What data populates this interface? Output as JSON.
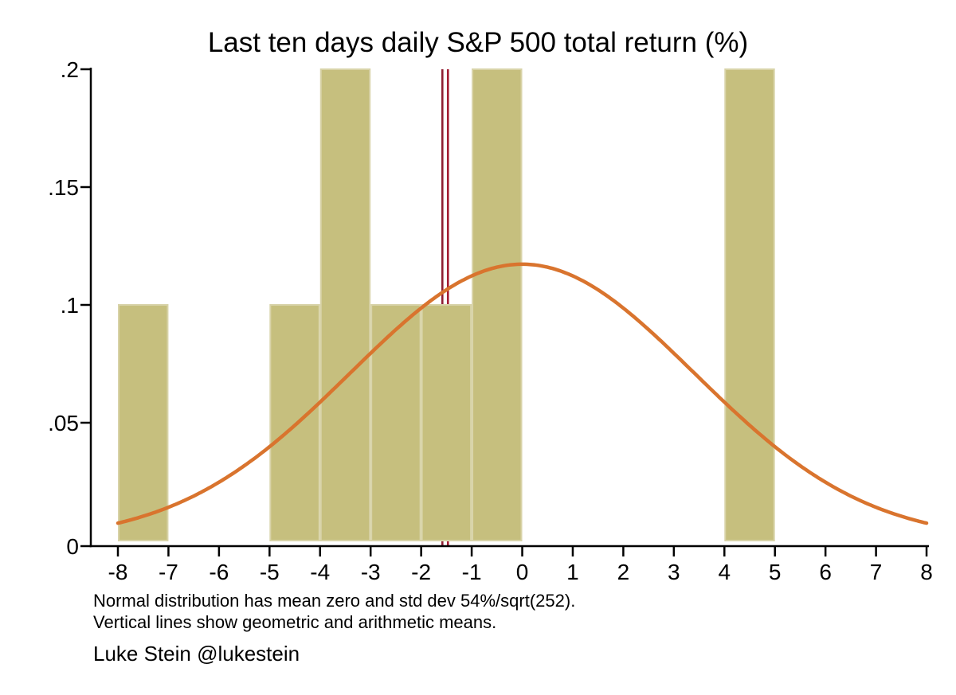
{
  "figure": {
    "title": "Last ten days daily S&P 500 total return (%)",
    "notes": [
      "Normal distribution has mean zero and std dev 54%/sqrt(252).",
      "Vertical lines show geometric and arithmetic means."
    ],
    "attribution": "Luke Stein @lukestein"
  },
  "chart_data": {
    "type": "bar",
    "subtype": "histogram-with-normal-overlay",
    "title": "Last ten days daily S&P 500 total return (%)",
    "xlabel": "",
    "ylabel": "",
    "xlim": [
      -8.55,
      8.05
    ],
    "ylim": [
      0,
      0.2
    ],
    "x_ticks": [
      -8,
      -7,
      -6,
      -5,
      -4,
      -3,
      -2,
      -1,
      0,
      1,
      2,
      3,
      4,
      5,
      6,
      7,
      8
    ],
    "y_tick_values": [
      0,
      0.05,
      0.1,
      0.15,
      0.2
    ],
    "y_tick_labels": [
      "0",
      ".05",
      ".1",
      ".15",
      ".2"
    ],
    "grid": false,
    "legend": false,
    "bin_width": 1,
    "bins": [
      {
        "from": -8,
        "to": -7,
        "density": 0.1
      },
      {
        "from": -5,
        "to": -4,
        "density": 0.1
      },
      {
        "from": -4,
        "to": -3,
        "density": 0.2
      },
      {
        "from": -3,
        "to": -2,
        "density": 0.1
      },
      {
        "from": -2,
        "to": -1,
        "density": 0.1
      },
      {
        "from": -1,
        "to": 0,
        "density": 0.2
      },
      {
        "from": 4,
        "to": 5,
        "density": 0.2
      }
    ],
    "normal_curve": {
      "mean": 0,
      "sd": 3.402,
      "sd_formula": "54%/sqrt(252)",
      "peak_density": 0.1173,
      "x_range": [
        -8,
        8
      ]
    },
    "mean_lines": [
      {
        "name": "geometric-mean",
        "x": -1.58
      },
      {
        "name": "arithmetic-mean",
        "x": -1.47
      }
    ],
    "colors": {
      "bar_fill": "#c6bf7e",
      "bar_edge": "#d8d3a8",
      "curve": "#d9742e",
      "mean_line_colors": [
        "#8e1f33",
        "#a31c33"
      ],
      "axis": "#000000",
      "background": "#ffffff"
    }
  }
}
